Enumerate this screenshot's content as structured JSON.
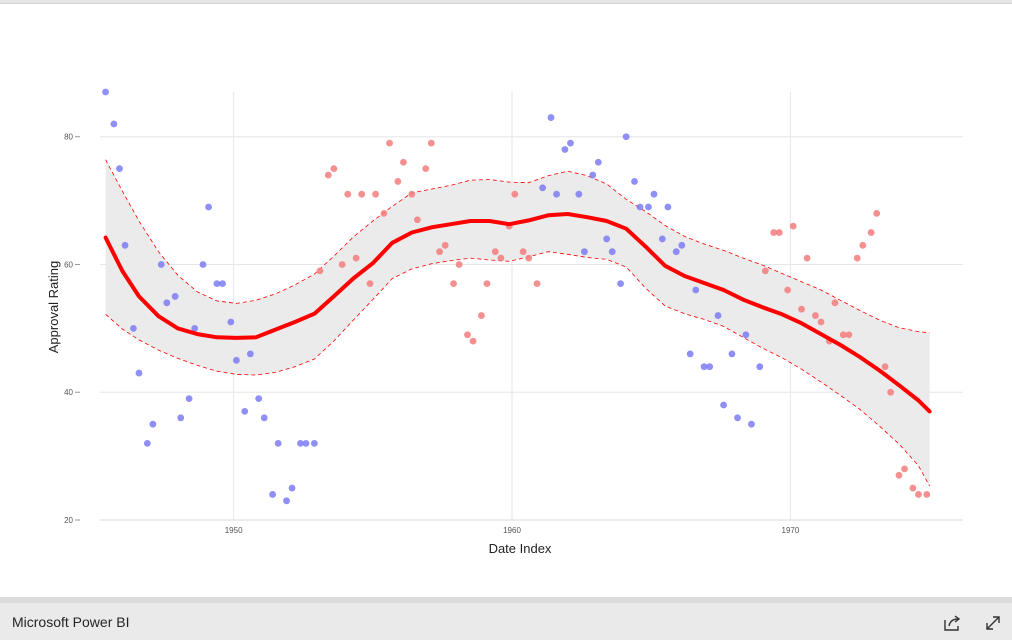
{
  "app": {
    "brand": "Microsoft Power BI"
  },
  "footer": {
    "share_icon": "share-icon",
    "expand_icon": "fullscreen-icon"
  },
  "colors": {
    "blue_points": "#7b7bf5",
    "red_points": "#f47c7c",
    "fit_line": "#ff0000",
    "band": "#ebebeb"
  },
  "chart_data": {
    "type": "scatter",
    "xlabel": "Date Index",
    "ylabel": "Approval Rating",
    "xlim": [
      1945.2,
      1976.2
    ],
    "ylim": [
      20,
      87
    ],
    "xticks": [
      1950,
      1960,
      1970
    ],
    "xtick_labels": [
      "1950",
      "1960",
      "1970"
    ],
    "yticks": [
      20,
      40,
      60,
      80
    ],
    "ytick_labels": [
      "20",
      "40",
      "60",
      "80"
    ],
    "grid": true,
    "legend": "none",
    "series": [
      {
        "color": "blue",
        "points": [
          [
            1945.4,
            87
          ],
          [
            1945.7,
            82
          ],
          [
            1945.9,
            75
          ],
          [
            1946.1,
            63
          ],
          [
            1946.4,
            50
          ],
          [
            1946.6,
            43
          ],
          [
            1946.9,
            32
          ],
          [
            1947.1,
            35
          ],
          [
            1947.4,
            60
          ],
          [
            1947.6,
            54
          ],
          [
            1947.9,
            55
          ],
          [
            1948.1,
            36
          ],
          [
            1948.4,
            39
          ],
          [
            1948.6,
            50
          ],
          [
            1948.9,
            60
          ],
          [
            1949.1,
            69
          ],
          [
            1949.4,
            57
          ],
          [
            1949.6,
            57
          ],
          [
            1949.9,
            51
          ],
          [
            1950.1,
            45
          ],
          [
            1950.4,
            37
          ],
          [
            1950.6,
            46
          ],
          [
            1950.9,
            39
          ],
          [
            1951.1,
            36
          ],
          [
            1951.4,
            24
          ],
          [
            1951.6,
            32
          ],
          [
            1951.9,
            23
          ],
          [
            1952.1,
            25
          ],
          [
            1952.4,
            32
          ],
          [
            1952.6,
            32
          ],
          [
            1952.9,
            32
          ],
          [
            1961.1,
            72
          ],
          [
            1961.4,
            83
          ],
          [
            1961.6,
            71
          ],
          [
            1961.9,
            78
          ],
          [
            1962.1,
            79
          ],
          [
            1962.4,
            71
          ],
          [
            1962.6,
            62
          ],
          [
            1962.9,
            74
          ],
          [
            1963.1,
            76
          ],
          [
            1963.4,
            64
          ],
          [
            1963.6,
            62
          ],
          [
            1963.9,
            57
          ],
          [
            1964.1,
            80
          ],
          [
            1964.4,
            73
          ],
          [
            1964.6,
            69
          ],
          [
            1964.9,
            69
          ],
          [
            1965.1,
            71
          ],
          [
            1965.4,
            64
          ],
          [
            1965.6,
            69
          ],
          [
            1965.9,
            62
          ],
          [
            1966.1,
            63
          ],
          [
            1966.4,
            46
          ],
          [
            1966.6,
            56
          ],
          [
            1966.9,
            44
          ],
          [
            1967.1,
            44
          ],
          [
            1967.4,
            52
          ],
          [
            1967.6,
            38
          ],
          [
            1967.9,
            46
          ],
          [
            1968.1,
            36
          ],
          [
            1968.4,
            49
          ],
          [
            1968.6,
            35
          ],
          [
            1968.9,
            44
          ]
        ]
      },
      {
        "color": "red",
        "points": [
          [
            1953.1,
            59
          ],
          [
            1953.4,
            74
          ],
          [
            1953.6,
            75
          ],
          [
            1953.9,
            60
          ],
          [
            1954.1,
            71
          ],
          [
            1954.4,
            61
          ],
          [
            1954.6,
            71
          ],
          [
            1954.9,
            57
          ],
          [
            1955.1,
            71
          ],
          [
            1955.4,
            68
          ],
          [
            1955.6,
            79
          ],
          [
            1955.9,
            73
          ],
          [
            1956.1,
            76
          ],
          [
            1956.4,
            71
          ],
          [
            1956.6,
            67
          ],
          [
            1956.9,
            75
          ],
          [
            1957.1,
            79
          ],
          [
            1957.4,
            62
          ],
          [
            1957.6,
            63
          ],
          [
            1957.9,
            57
          ],
          [
            1958.1,
            60
          ],
          [
            1958.4,
            49
          ],
          [
            1958.6,
            48
          ],
          [
            1958.9,
            52
          ],
          [
            1959.1,
            57
          ],
          [
            1959.4,
            62
          ],
          [
            1959.6,
            61
          ],
          [
            1959.9,
            66
          ],
          [
            1960.1,
            71
          ],
          [
            1960.4,
            62
          ],
          [
            1960.6,
            61
          ],
          [
            1960.9,
            57
          ],
          [
            1969.1,
            59
          ],
          [
            1969.4,
            65
          ],
          [
            1969.6,
            65
          ],
          [
            1969.9,
            56
          ],
          [
            1970.1,
            66
          ],
          [
            1970.4,
            53
          ],
          [
            1970.6,
            61
          ],
          [
            1970.9,
            52
          ],
          [
            1971.1,
            51
          ],
          [
            1971.4,
            48
          ],
          [
            1971.6,
            54
          ],
          [
            1971.9,
            49
          ],
          [
            1972.1,
            49
          ],
          [
            1972.4,
            61
          ],
          [
            1972.6,
            63
          ],
          [
            1972.9,
            65
          ],
          [
            1973.1,
            68
          ],
          [
            1973.4,
            44
          ],
          [
            1973.6,
            40
          ],
          [
            1973.9,
            27
          ],
          [
            1974.1,
            28
          ],
          [
            1974.4,
            25
          ],
          [
            1974.6,
            24
          ],
          [
            1974.9,
            24
          ]
        ]
      }
    ],
    "fit": {
      "color": "red",
      "x": [
        1945.4,
        1946,
        1946.6,
        1947.3,
        1948,
        1948.7,
        1949.4,
        1950.1,
        1950.8,
        1951.5,
        1952.2,
        1952.9,
        1953.6,
        1954.3,
        1955,
        1955.7,
        1956.4,
        1957.1,
        1957.8,
        1958.5,
        1959.2,
        1959.9,
        1960.6,
        1961.3,
        1962,
        1962.7,
        1963.4,
        1964.1,
        1964.8,
        1965.5,
        1966.2,
        1966.9,
        1967.6,
        1968.3,
        1969,
        1969.7,
        1970.4,
        1971.1,
        1971.8,
        1972.5,
        1973.2,
        1973.9,
        1974.6,
        1975
      ],
      "y": [
        64.2,
        59,
        55,
        51.9,
        50,
        49.1,
        48.6,
        48.5,
        48.6,
        49.8,
        51,
        52.3,
        55,
        57.8,
        60.2,
        63.4,
        65,
        65.8,
        66.3,
        66.8,
        66.8,
        66.3,
        66.9,
        67.7,
        67.9,
        67.4,
        66.8,
        65.6,
        62.8,
        59.8,
        58.2,
        57.1,
        56,
        54.5,
        53.3,
        52.2,
        50.8,
        49.1,
        47.4,
        45.5,
        43.4,
        41.1,
        38.7,
        37
      ]
    },
    "band": {
      "upper": [
        76.4,
        71.5,
        66.8,
        62,
        58.3,
        55.7,
        54.3,
        53.9,
        54.4,
        55.4,
        56.8,
        58.5,
        61.3,
        64.3,
        66.8,
        69.1,
        71.2,
        71.8,
        72.4,
        73.2,
        73.3,
        72.9,
        72.8,
        73.9,
        74.6,
        73.9,
        72.6,
        70.2,
        68.3,
        66.1,
        64.4,
        63.2,
        62.2,
        61,
        59.9,
        58.6,
        57.3,
        56,
        54.4,
        52.8,
        51.3,
        50.1,
        49.5,
        49.3
      ],
      "lower": [
        52.2,
        49.9,
        48.2,
        46.6,
        45.3,
        44.2,
        43.3,
        42.8,
        42.7,
        43.1,
        44,
        45.2,
        48,
        51.3,
        54.5,
        57.8,
        59.3,
        60.1,
        60.6,
        61,
        60.7,
        60.5,
        61.2,
        62,
        61.6,
        61.1,
        60.8,
        59.6,
        56.3,
        53.5,
        52.3,
        51.4,
        50.3,
        48.6,
        46.9,
        45.4,
        43.6,
        41.6,
        39.5,
        37.3,
        34.7,
        31.9,
        28.5,
        25.3
      ]
    }
  }
}
